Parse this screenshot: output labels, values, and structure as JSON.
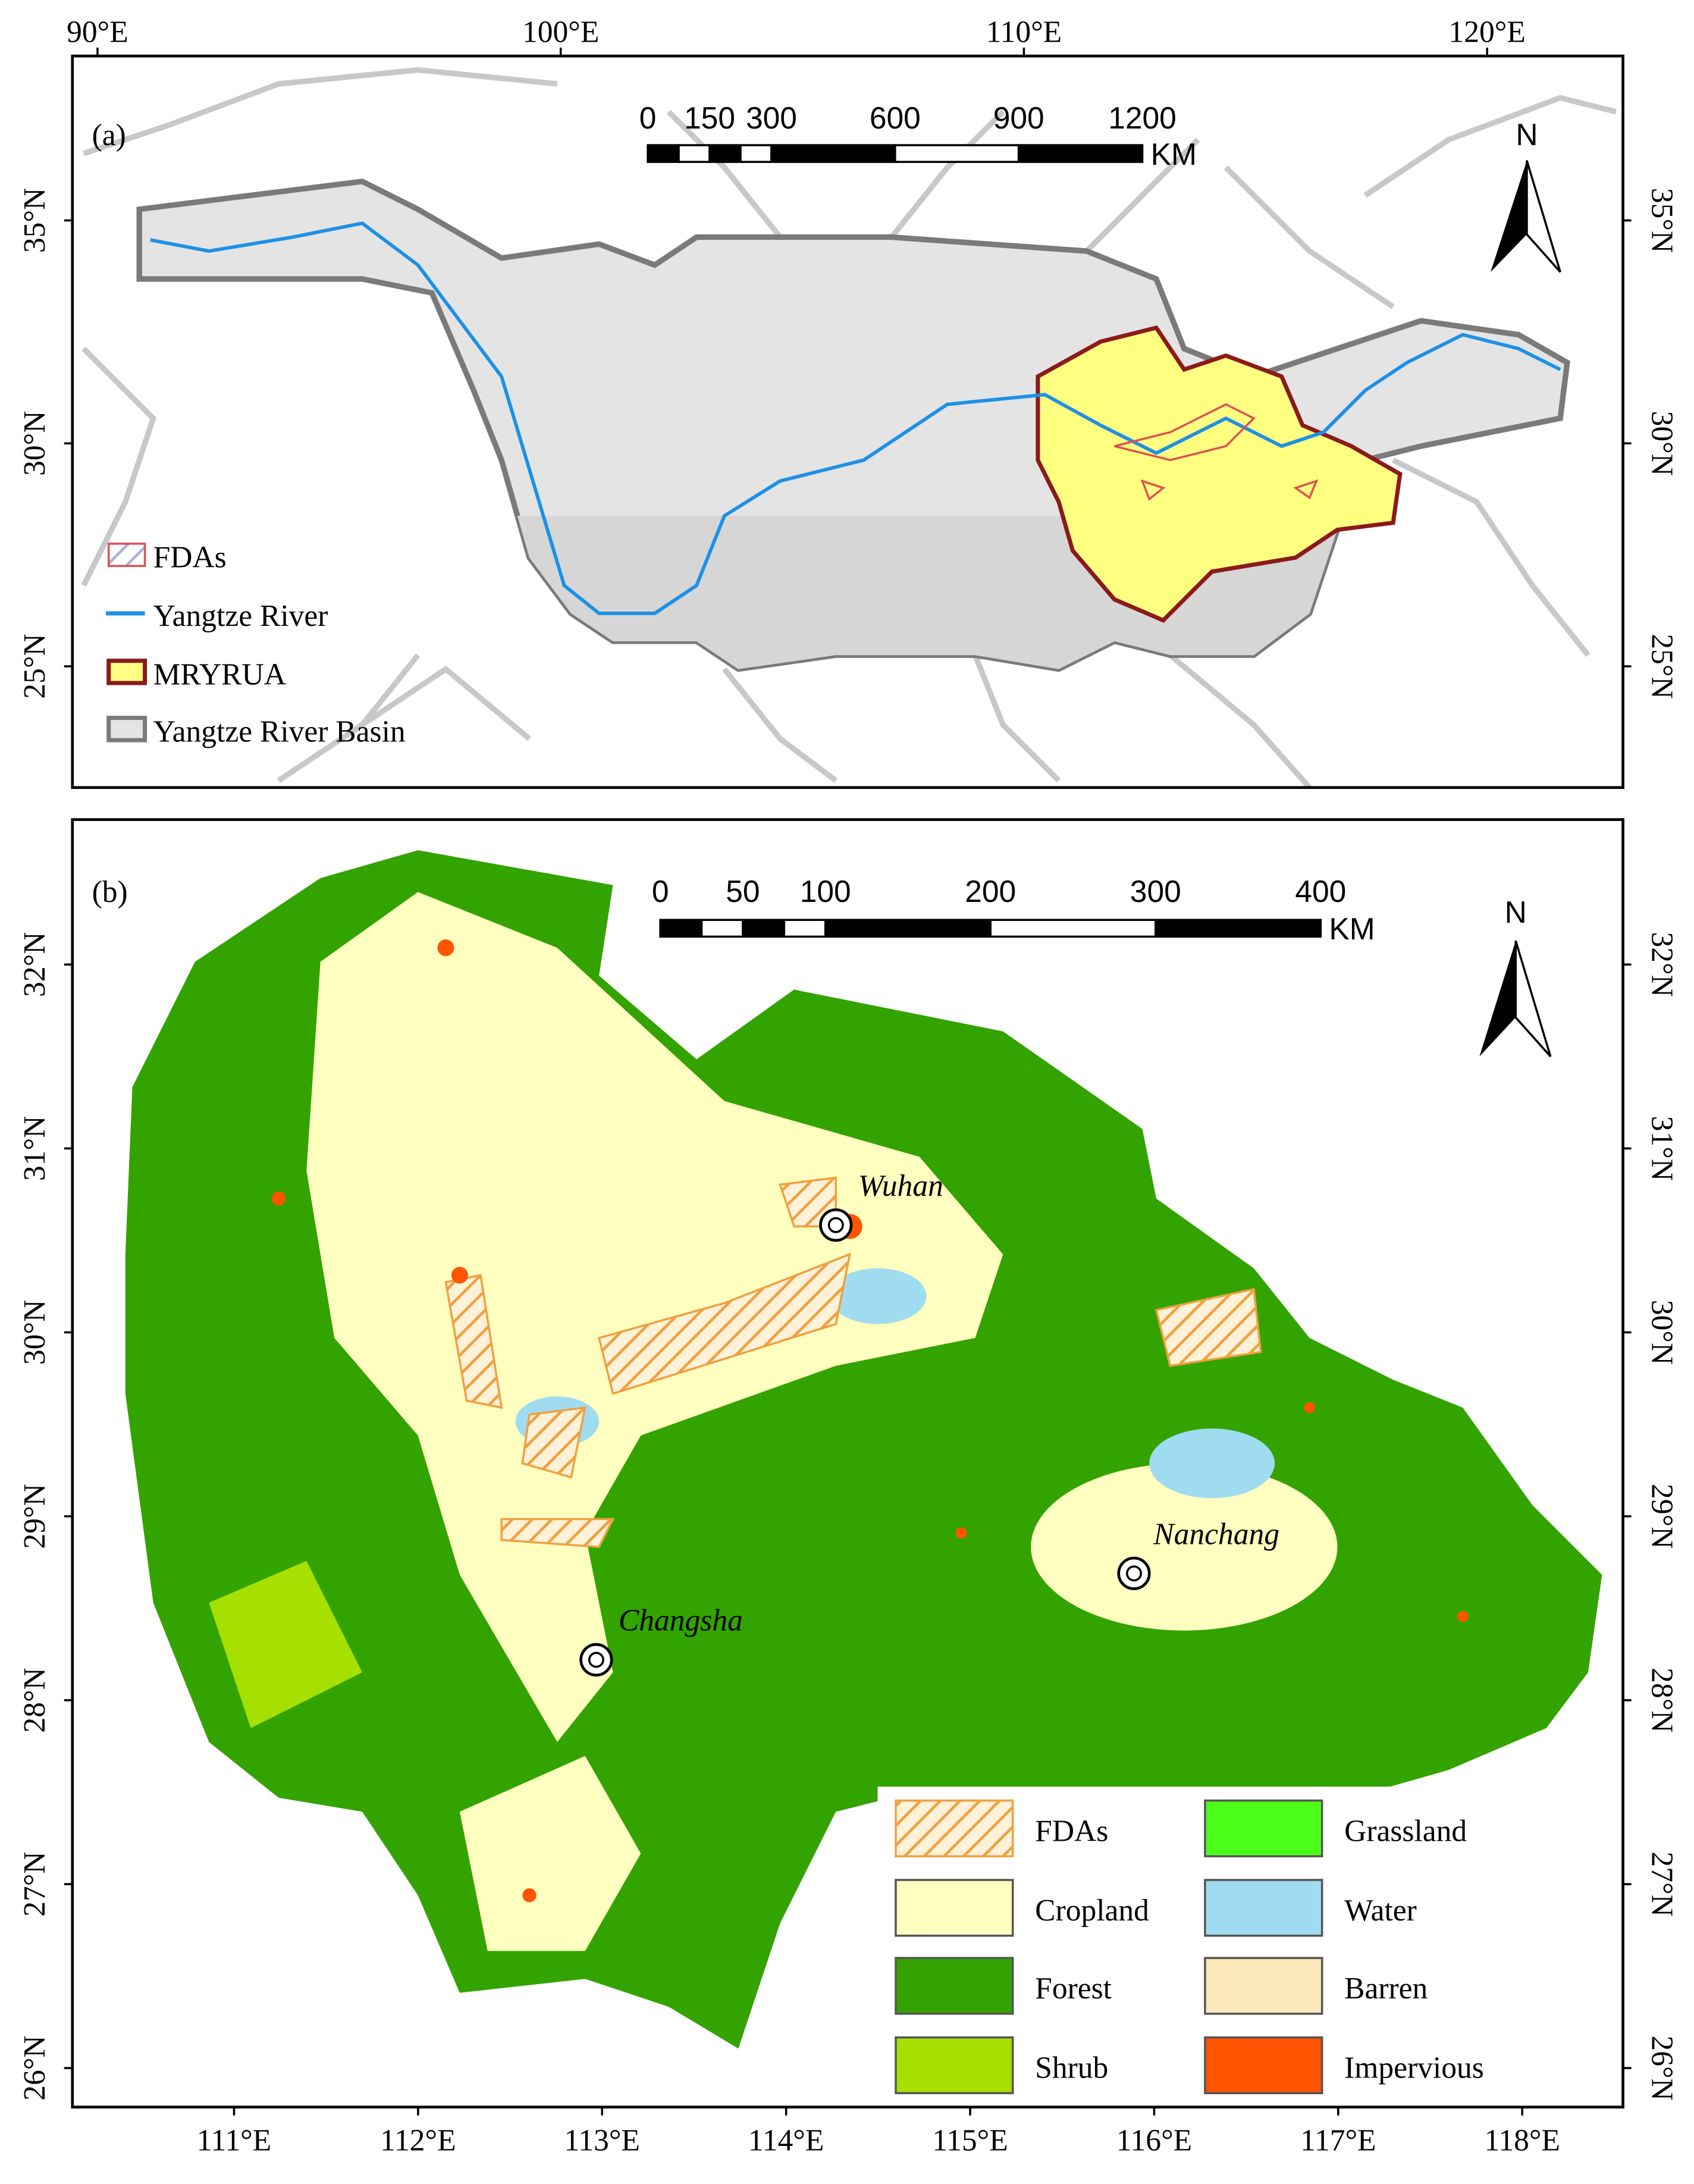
{
  "panel_a": {
    "label": "(a)",
    "lon_ticks": [
      "90°E",
      "100°E",
      "110°E",
      "120°E"
    ],
    "lat_ticks": [
      "35°N",
      "30°N",
      "25°N"
    ],
    "scale_bar": {
      "ticks": [
        0,
        150,
        300,
        600,
        900,
        1200
      ],
      "unit": "KM"
    },
    "north": "N",
    "legend": [
      {
        "label": "FDAs",
        "color": "#e05050"
      },
      {
        "label": "Yangtze River",
        "color": "#1e90e6"
      },
      {
        "label": "MRYRUA",
        "color": "#ffff80"
      },
      {
        "label": "Yangtze River Basin",
        "color": "#e4e4e4"
      }
    ]
  },
  "panel_b": {
    "label": "(b)",
    "lon_ticks": [
      "111°E",
      "112°E",
      "113°E",
      "114°E",
      "115°E",
      "116°E",
      "117°E",
      "118°E"
    ],
    "lat_ticks": [
      "32°N",
      "31°N",
      "30°N",
      "29°N",
      "28°N",
      "27°N",
      "26°N"
    ],
    "scale_bar": {
      "ticks": [
        0,
        50,
        100,
        200,
        300,
        400
      ],
      "unit": "KM"
    },
    "north": "N",
    "cities": [
      "Wuhan",
      "Nanchang",
      "Changsha"
    ],
    "legend": [
      {
        "label": "FDAs",
        "color": "#f0a040"
      },
      {
        "label": "Cropland",
        "color": "#ffffc0"
      },
      {
        "label": "Forest",
        "color": "#33a300"
      },
      {
        "label": "Shrub",
        "color": "#a6e000"
      },
      {
        "label": "Grassland",
        "color": "#4cff1a"
      },
      {
        "label": "Water",
        "color": "#a0dcf0"
      },
      {
        "label": "Barren",
        "color": "#fde8bc"
      },
      {
        "label": "Impervious",
        "color": "#ff5500"
      }
    ]
  }
}
